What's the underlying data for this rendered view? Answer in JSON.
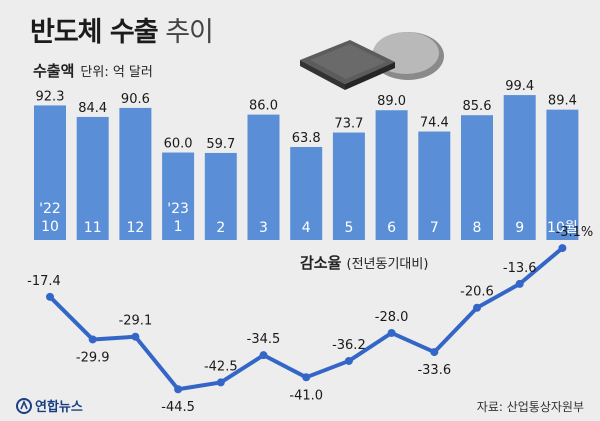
{
  "header": {
    "title_bold": "반도체 수출",
    "title_light": "추이"
  },
  "export_chart": {
    "label": "수출액",
    "unit": "단위: 억 달러"
  },
  "decline_chart": {
    "label": "감소율",
    "sub": "(전년동기대비)"
  },
  "footer": {
    "logo": "연합뉴스",
    "source": "자료: 산업통상자원부"
  },
  "colors": {
    "bar": "#5a8fd8",
    "line": "#3466c8",
    "background": "#ededed"
  },
  "chart_data": [
    {
      "type": "bar",
      "categories": [
        [
          "'22",
          "10"
        ],
        [
          "11"
        ],
        [
          "12"
        ],
        [
          "'23",
          "1"
        ],
        [
          "2"
        ],
        [
          "3"
        ],
        [
          "4"
        ],
        [
          "5"
        ],
        [
          "6"
        ],
        [
          "7"
        ],
        [
          "8"
        ],
        [
          "9"
        ],
        [
          "10월"
        ]
      ],
      "values": [
        92.3,
        84.4,
        90.6,
        60.0,
        59.7,
        86.0,
        63.8,
        73.7,
        89.0,
        74.4,
        85.6,
        99.4,
        89.4
      ],
      "value_labels": [
        "92.3",
        "84.4",
        "90.6",
        "60.0",
        "59.7",
        "86.0",
        "63.8",
        "73.7",
        "89.0",
        "74.4",
        "85.6",
        "99.4",
        "89.4"
      ],
      "unit": "억 달러"
    },
    {
      "type": "line",
      "values": [
        -17.4,
        -29.9,
        -29.1,
        -44.5,
        -42.5,
        -34.5,
        -41.0,
        -36.2,
        -28.0,
        -33.6,
        -20.6,
        -13.6,
        -3.1
      ],
      "value_labels": [
        "-17.4",
        "-29.9",
        "-29.1",
        "-44.5",
        "-42.5",
        "-34.5",
        "-41.0",
        "-36.2",
        "-28.0",
        "-33.6",
        "-20.6",
        "-13.6",
        "-3.1%"
      ]
    }
  ]
}
